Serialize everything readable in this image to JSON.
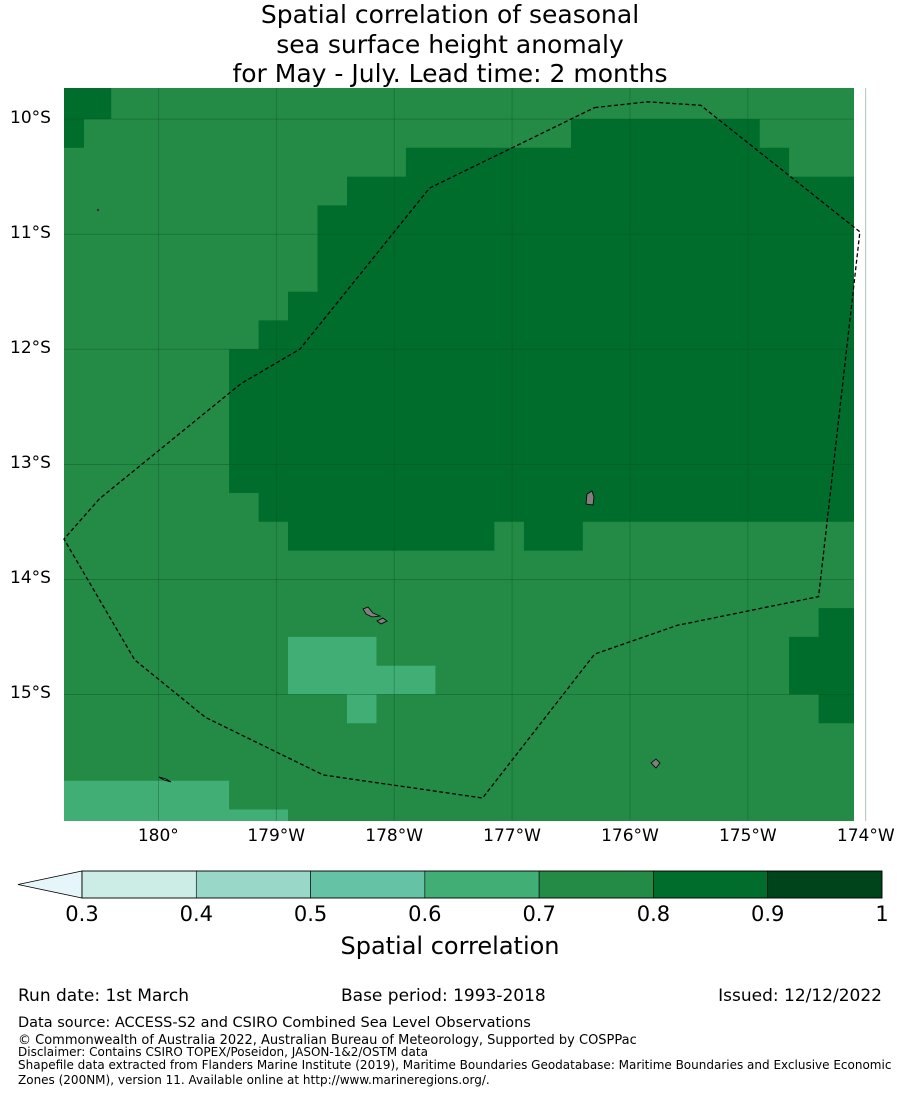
{
  "title": {
    "line1": "Spatial correlation of seasonal",
    "line2": "sea surface height anomaly",
    "line3": "for May - July. Lead time: 2 months"
  },
  "map": {
    "lon_range": [
      179.2,
      185.9
    ],
    "lat_range": [
      -16.1,
      -9.73
    ],
    "grid_cell_deg": 0.25,
    "lat_ticks": [
      {
        "value": -10,
        "label": "10°S"
      },
      {
        "value": -11,
        "label": "11°S"
      },
      {
        "value": -12,
        "label": "12°S"
      },
      {
        "value": -13,
        "label": "13°S"
      },
      {
        "value": -14,
        "label": "14°S"
      },
      {
        "value": -15,
        "label": "15°S"
      }
    ],
    "lon_ticks": [
      {
        "value": 180,
        "label": "180°"
      },
      {
        "value": 181,
        "label": "179°W"
      },
      {
        "value": 182,
        "label": "178°W"
      },
      {
        "value": 183,
        "label": "177°W"
      },
      {
        "value": 184,
        "label": "176°W"
      },
      {
        "value": 185,
        "label": "175°W"
      },
      {
        "value": 186,
        "label": "174°W"
      }
    ],
    "background_bin": "0.7-0.8",
    "regions": [
      {
        "bin": "0.8-0.9",
        "polygon": [
          [
            183.5,
            -10.0
          ],
          [
            185.1,
            -10.0
          ],
          [
            185.1,
            -10.25
          ],
          [
            185.35,
            -10.25
          ],
          [
            185.35,
            -10.5
          ],
          [
            185.9,
            -10.5
          ],
          [
            185.9,
            -13.5
          ],
          [
            183.6,
            -13.5
          ],
          [
            183.6,
            -13.75
          ],
          [
            183.1,
            -13.75
          ],
          [
            183.1,
            -13.5
          ],
          [
            182.85,
            -13.5
          ],
          [
            182.85,
            -13.75
          ],
          [
            181.1,
            -13.75
          ],
          [
            181.1,
            -13.5
          ],
          [
            180.85,
            -13.5
          ],
          [
            180.85,
            -13.25
          ],
          [
            180.6,
            -13.25
          ],
          [
            180.6,
            -12.0
          ],
          [
            180.85,
            -12.0
          ],
          [
            180.85,
            -11.75
          ],
          [
            181.1,
            -11.75
          ],
          [
            181.1,
            -11.5
          ],
          [
            181.35,
            -11.5
          ],
          [
            181.35,
            -10.75
          ],
          [
            181.6,
            -10.75
          ],
          [
            181.6,
            -10.5
          ],
          [
            182.1,
            -10.5
          ],
          [
            182.1,
            -10.25
          ],
          [
            183.5,
            -10.25
          ]
        ]
      },
      {
        "bin": "0.8-0.9",
        "polygon": [
          [
            179.2,
            -9.73
          ],
          [
            179.6,
            -9.73
          ],
          [
            179.6,
            -10.0
          ],
          [
            179.37,
            -10.0
          ],
          [
            179.37,
            -10.25
          ],
          [
            179.2,
            -10.25
          ]
        ]
      },
      {
        "bin": "0.8-0.9",
        "polygon": [
          [
            185.6,
            -14.25
          ],
          [
            185.9,
            -14.25
          ],
          [
            185.9,
            -15.25
          ],
          [
            185.6,
            -15.25
          ],
          [
            185.6,
            -15.0
          ],
          [
            185.35,
            -15.0
          ],
          [
            185.35,
            -14.5
          ],
          [
            185.6,
            -14.5
          ]
        ]
      },
      {
        "bin": "0.6-0.7",
        "polygon": [
          [
            181.1,
            -14.5
          ],
          [
            181.85,
            -14.5
          ],
          [
            181.85,
            -14.75
          ],
          [
            182.35,
            -14.75
          ],
          [
            182.35,
            -15.0
          ],
          [
            181.85,
            -15.0
          ],
          [
            181.85,
            -15.25
          ],
          [
            181.6,
            -15.25
          ],
          [
            181.6,
            -15.0
          ],
          [
            181.1,
            -15.0
          ]
        ]
      },
      {
        "bin": "0.6-0.7",
        "polygon": [
          [
            179.2,
            -15.75
          ],
          [
            180.6,
            -15.75
          ],
          [
            180.6,
            -16.0
          ],
          [
            181.1,
            -16.0
          ],
          [
            181.1,
            -16.1
          ],
          [
            179.2,
            -16.1
          ]
        ]
      }
    ],
    "eez_boundary": [
      [
        183.7,
        -9.9
      ],
      [
        184.15,
        -9.85
      ],
      [
        184.6,
        -9.88
      ],
      [
        185.95,
        -10.98
      ],
      [
        185.6,
        -14.15
      ],
      [
        184.4,
        -14.4
      ],
      [
        183.7,
        -14.65
      ],
      [
        182.75,
        -15.9
      ],
      [
        181.4,
        -15.7
      ],
      [
        180.4,
        -15.2
      ],
      [
        179.8,
        -14.7
      ],
      [
        179.2,
        -13.65
      ],
      [
        179.5,
        -13.3
      ],
      [
        180.7,
        -12.3
      ],
      [
        181.2,
        -12.0
      ],
      [
        182.3,
        -10.6
      ]
    ]
  },
  "colorbar": {
    "bins": [
      {
        "label": "0.3-0.4",
        "color": "#ccece6"
      },
      {
        "label": "0.4-0.5",
        "color": "#99d8c9"
      },
      {
        "label": "0.5-0.6",
        "color": "#66c2a4"
      },
      {
        "label": "0.6-0.7",
        "color": "#41ae76"
      },
      {
        "label": "0.7-0.8",
        "color": "#238b45"
      },
      {
        "label": "0.8-0.9",
        "color": "#006d2c"
      },
      {
        "label": "0.9-1",
        "color": "#00441b"
      }
    ],
    "under_color": "#e5f5f9",
    "ticks": [
      "0.3",
      "0.4",
      "0.5",
      "0.6",
      "0.7",
      "0.8",
      "0.9",
      "1"
    ],
    "label": "Spatial correlation"
  },
  "footer": {
    "run_date": "Run date: 1st March",
    "base_period": "Base period: 1993-2018",
    "issued": "Issued: 12/12/2022",
    "data_source": "Data source: ACCESS-S2 and CSIRO Combined Sea Level Observations",
    "copyright": "© Commonwealth of Australia 2022, Australian Bureau of Meteorology, Supported by COSPPac",
    "disclaimer": "Disclaimer: Contains CSIRO TOPEX/Poseidon, JASON-1&2/OSTM data",
    "shapefile": "Shapefile data extracted from Flanders Marine Institute (2019), Maritime Boundaries Geodatabase: Maritime Boundaries and Exclusive Economic Zones (200NM), version 11. Available online at http://www.marineregions.org/."
  }
}
